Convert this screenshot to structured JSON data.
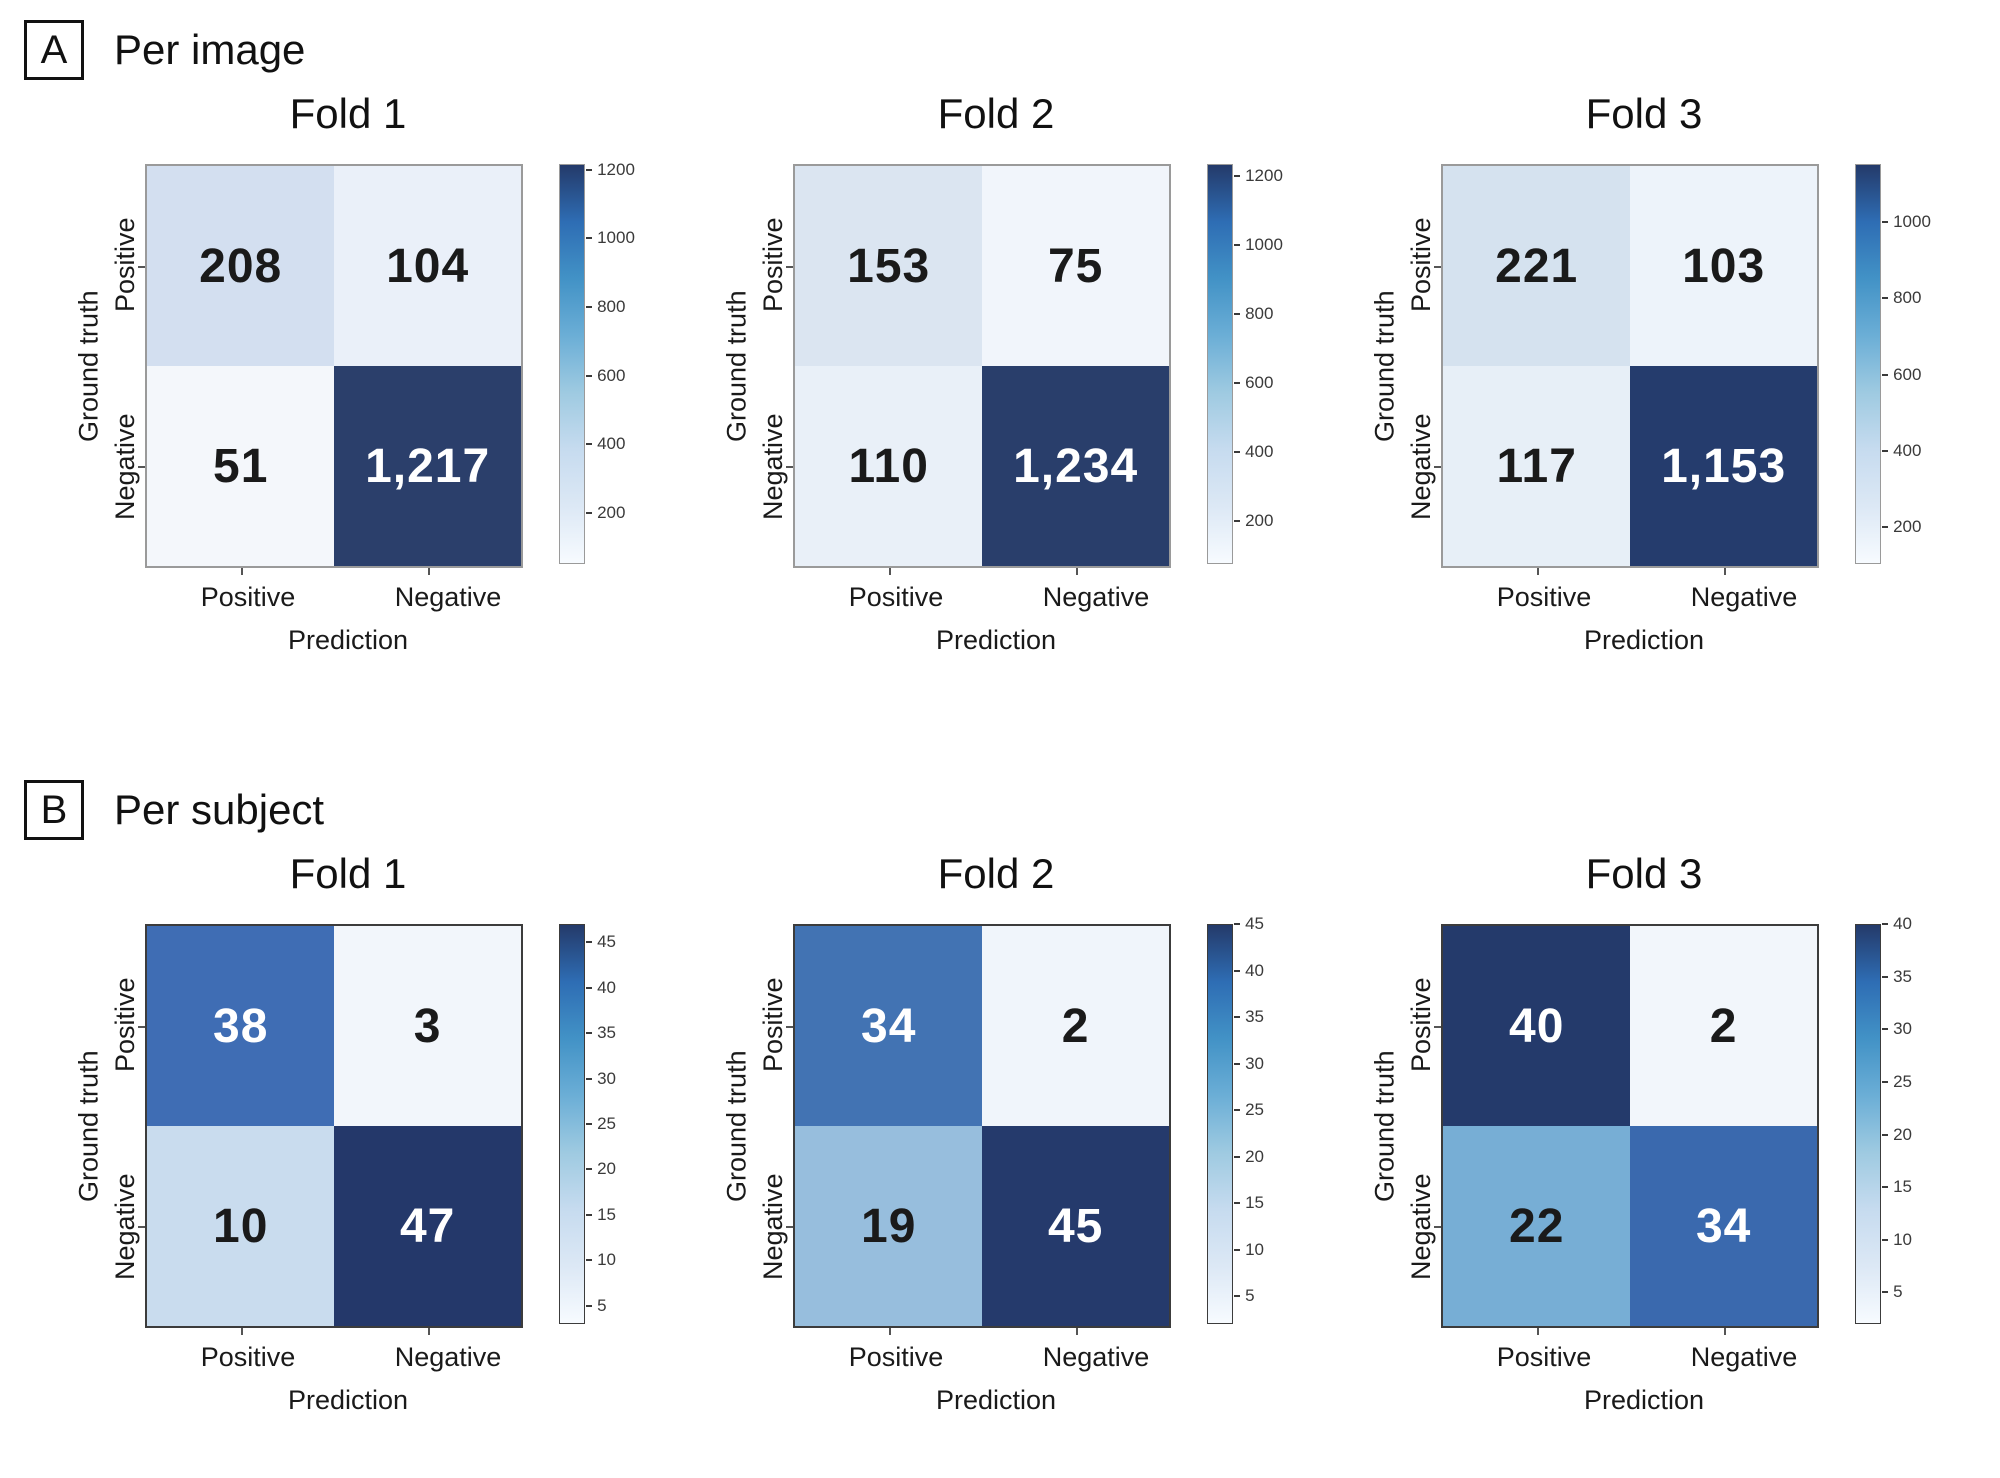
{
  "panels": [
    {
      "tag": "A",
      "title": "Per image"
    },
    {
      "tag": "B",
      "title": "Per subject"
    }
  ],
  "axis": {
    "xlabel": "Prediction",
    "ylabel": "Ground truth",
    "x_categories": [
      "Positive",
      "Negative"
    ],
    "y_categories": [
      "Positive",
      "Negative"
    ]
  },
  "colorbar_gradient": [
    "#f7fbff",
    "#dce8f5",
    "#c6dbef",
    "#9ecae1",
    "#6baed6",
    "#4292c6",
    "#2e6db4",
    "#243a6a"
  ],
  "chart_data": [
    {
      "type": "heatmap",
      "panel": "A",
      "title": "Fold 1",
      "xlabel": "Prediction",
      "ylabel": "Ground truth",
      "x_categories": [
        "Positive",
        "Negative"
      ],
      "y_categories": [
        "Positive",
        "Negative"
      ],
      "values": [
        [
          208,
          104
        ],
        [
          51,
          1217
        ]
      ],
      "labels": [
        [
          "208",
          "104"
        ],
        [
          "51",
          "1,217"
        ]
      ],
      "cell_colors": [
        [
          "#d3dff0",
          "#eaf0f9"
        ],
        [
          "#f4f7fb",
          "#2b3f6b"
        ]
      ],
      "label_colors": [
        [
          "#1a1a1a",
          "#1a1a1a"
        ],
        [
          "#1a1a1a",
          "#ffffff"
        ]
      ],
      "frame_color": "#9a9a9a",
      "colorbar": {
        "vmin": 51,
        "vmax": 1217,
        "ticks": [
          200,
          400,
          600,
          800,
          1000,
          1200
        ]
      }
    },
    {
      "type": "heatmap",
      "panel": "A",
      "title": "Fold 2",
      "xlabel": "Prediction",
      "ylabel": "Ground truth",
      "x_categories": [
        "Positive",
        "Negative"
      ],
      "y_categories": [
        "Positive",
        "Negative"
      ],
      "values": [
        [
          153,
          75
        ],
        [
          110,
          1234
        ]
      ],
      "labels": [
        [
          "153",
          "75"
        ],
        [
          "110",
          "1,234"
        ]
      ],
      "cell_colors": [
        [
          "#dbe5f1",
          "#f1f5fb"
        ],
        [
          "#e9f0f8",
          "#293e6b"
        ]
      ],
      "label_colors": [
        [
          "#1a1a1a",
          "#1a1a1a"
        ],
        [
          "#1a1a1a",
          "#ffffff"
        ]
      ],
      "frame_color": "#9a9a9a",
      "colorbar": {
        "vmin": 75,
        "vmax": 1234,
        "ticks": [
          200,
          400,
          600,
          800,
          1000,
          1200
        ]
      }
    },
    {
      "type": "heatmap",
      "panel": "A",
      "title": "Fold 3",
      "xlabel": "Prediction",
      "ylabel": "Ground truth",
      "x_categories": [
        "Positive",
        "Negative"
      ],
      "y_categories": [
        "Positive",
        "Negative"
      ],
      "values": [
        [
          221,
          103
        ],
        [
          117,
          1153
        ]
      ],
      "labels": [
        [
          "221",
          "103"
        ],
        [
          "117",
          "1,153"
        ]
      ],
      "cell_colors": [
        [
          "#d5e2ef",
          "#edf3fa"
        ],
        [
          "#e7eff7",
          "#253c6d"
        ]
      ],
      "label_colors": [
        [
          "#1a1a1a",
          "#1a1a1a"
        ],
        [
          "#1a1a1a",
          "#ffffff"
        ]
      ],
      "frame_color": "#9a9a9a",
      "colorbar": {
        "vmin": 103,
        "vmax": 1153,
        "ticks": [
          200,
          400,
          600,
          800,
          1000
        ]
      }
    },
    {
      "type": "heatmap",
      "panel": "B",
      "title": "Fold 1",
      "xlabel": "Prediction",
      "ylabel": "Ground truth",
      "x_categories": [
        "Positive",
        "Negative"
      ],
      "y_categories": [
        "Positive",
        "Negative"
      ],
      "values": [
        [
          38,
          3
        ],
        [
          10,
          47
        ]
      ],
      "labels": [
        [
          "38",
          "3"
        ],
        [
          "10",
          "47"
        ]
      ],
      "cell_colors": [
        [
          "#3f6db4",
          "#f2f6fb"
        ],
        [
          "#c9dcee",
          "#24386a"
        ]
      ],
      "label_colors": [
        [
          "#ffffff",
          "#1a1a1a"
        ],
        [
          "#1a1a1a",
          "#ffffff"
        ]
      ],
      "frame_color": "#3c3c3c",
      "colorbar": {
        "vmin": 3,
        "vmax": 47,
        "ticks": [
          5,
          10,
          15,
          20,
          25,
          30,
          35,
          40,
          45
        ]
      }
    },
    {
      "type": "heatmap",
      "panel": "B",
      "title": "Fold 2",
      "xlabel": "Prediction",
      "ylabel": "Ground truth",
      "x_categories": [
        "Positive",
        "Negative"
      ],
      "y_categories": [
        "Positive",
        "Negative"
      ],
      "values": [
        [
          34,
          2
        ],
        [
          19,
          45
        ]
      ],
      "labels": [
        [
          "34",
          "2"
        ],
        [
          "19",
          "45"
        ]
      ],
      "cell_colors": [
        [
          "#4273b3",
          "#f0f5fb"
        ],
        [
          "#97bedd",
          "#253a6c"
        ]
      ],
      "label_colors": [
        [
          "#ffffff",
          "#1a1a1a"
        ],
        [
          "#1a1a1a",
          "#ffffff"
        ]
      ],
      "frame_color": "#3c3c3c",
      "colorbar": {
        "vmin": 2,
        "vmax": 45,
        "ticks": [
          5,
          10,
          15,
          20,
          25,
          30,
          35,
          40,
          45
        ]
      }
    },
    {
      "type": "heatmap",
      "panel": "B",
      "title": "Fold 3",
      "xlabel": "Prediction",
      "ylabel": "Ground truth",
      "x_categories": [
        "Positive",
        "Negative"
      ],
      "y_categories": [
        "Positive",
        "Negative"
      ],
      "values": [
        [
          40,
          2
        ],
        [
          22,
          34
        ]
      ],
      "labels": [
        [
          "40",
          "2"
        ],
        [
          "22",
          "34"
        ]
      ],
      "cell_colors": [
        [
          "#243a6b",
          "#f2f6fb"
        ],
        [
          "#77aed5",
          "#3a69ae"
        ]
      ],
      "label_colors": [
        [
          "#ffffff",
          "#1a1a1a"
        ],
        [
          "#1a1a1a",
          "#ffffff"
        ]
      ],
      "frame_color": "#3c3c3c",
      "colorbar": {
        "vmin": 2,
        "vmax": 40,
        "ticks": [
          5,
          10,
          15,
          20,
          25,
          30,
          35,
          40
        ]
      }
    }
  ]
}
